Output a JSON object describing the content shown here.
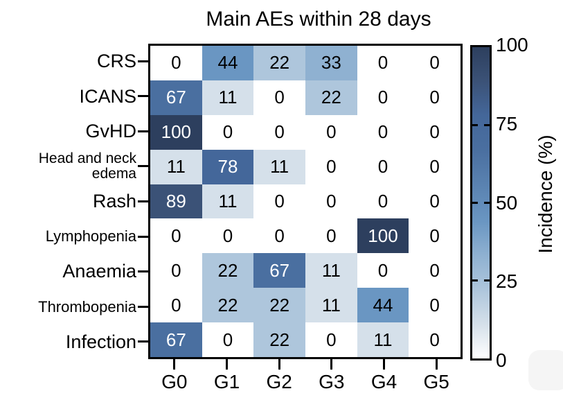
{
  "title": "Main AEs within 28 days",
  "chart_data": {
    "type": "heatmap",
    "title": "Main AEs within 28 days",
    "rows": [
      "CRS",
      "ICANS",
      "GvHD",
      "Head and neck\nedema",
      "Rash",
      "Lymphopenia",
      "Anaemia",
      "Thrombopenia",
      "Infection"
    ],
    "columns": [
      "G0",
      "G1",
      "G2",
      "G3",
      "G4",
      "G5"
    ],
    "values": [
      [
        0,
        44,
        22,
        33,
        0,
        0
      ],
      [
        67,
        11,
        0,
        22,
        0,
        0
      ],
      [
        100,
        0,
        0,
        0,
        0,
        0
      ],
      [
        11,
        78,
        11,
        0,
        0,
        0
      ],
      [
        89,
        11,
        0,
        0,
        0,
        0
      ],
      [
        0,
        0,
        0,
        0,
        100,
        0
      ],
      [
        0,
        22,
        67,
        11,
        0,
        0
      ],
      [
        0,
        22,
        22,
        11,
        44,
        0
      ],
      [
        67,
        0,
        22,
        0,
        11,
        0
      ]
    ],
    "value_range": [
      0,
      100
    ],
    "colorbar": {
      "label": "Incidence (%)",
      "ticks": [
        0,
        25,
        50,
        75,
        100
      ]
    },
    "color_scale": [
      {
        "value": 0,
        "color": "#ffffff"
      },
      {
        "value": 11,
        "color": "#d5e0ea"
      },
      {
        "value": 22,
        "color": "#aec6dc"
      },
      {
        "value": 33,
        "color": "#8fb1d1"
      },
      {
        "value": 44,
        "color": "#6a96c2"
      },
      {
        "value": 67,
        "color": "#4a6fa0"
      },
      {
        "value": 78,
        "color": "#44679a"
      },
      {
        "value": 89,
        "color": "#3b5277"
      },
      {
        "value": 100,
        "color": "#2d3f5e"
      }
    ],
    "text_color_threshold": 60,
    "grid": false,
    "legend_position": "right-colorbar"
  }
}
